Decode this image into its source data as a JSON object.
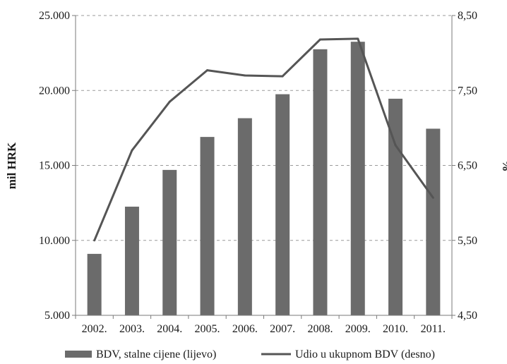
{
  "chart_data": {
    "type": "bar",
    "title": "",
    "categories": [
      "2002.",
      "2003.",
      "2004.",
      "2005.",
      "2006.",
      "2007.",
      "2008.",
      "2009.",
      "2010.",
      "2011."
    ],
    "series": [
      {
        "name": "BDV, stalne cijene (lijevo)",
        "type": "bar",
        "axis": "left",
        "color": "#6b6b6b",
        "values": [
          9100,
          12250,
          14700,
          16900,
          18150,
          19750,
          22750,
          23250,
          19450,
          17450
        ]
      },
      {
        "name": "Udio u ukupnom BDV (desno)",
        "type": "line",
        "axis": "right",
        "color": "#555555",
        "values": [
          5.5,
          6.7,
          7.35,
          7.77,
          7.7,
          7.69,
          8.18,
          8.19,
          6.77,
          6.07
        ]
      }
    ],
    "ylabel_left": "mil HRK",
    "ylim_left": [
      5000,
      25000
    ],
    "yticks_left": [
      "5.000",
      "10.000",
      "15.000",
      "20.000",
      "25.000"
    ],
    "ylabel_right": "%",
    "ylim_right": [
      4.5,
      8.5
    ],
    "yticks_right": [
      "4,50",
      "5,50",
      "6,50",
      "7,50",
      "8,50"
    ],
    "grid": "horizontal dashed",
    "legend": "bottom"
  }
}
